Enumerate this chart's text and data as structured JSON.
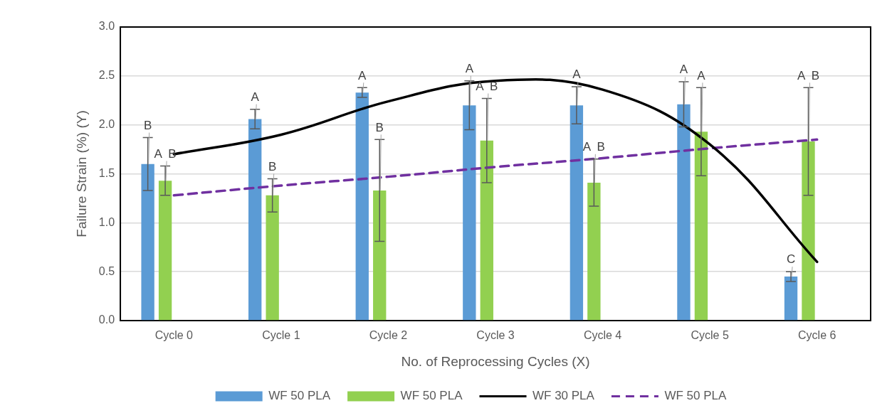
{
  "chart_data": {
    "type": "bar",
    "xlabel": "No. of Reprocessing Cycles (X)",
    "ylabel": "Failure Strain (%) (Y)",
    "categories": [
      "Cycle 0",
      "Cycle 1",
      "Cycle 2",
      "Cycle 3",
      "Cycle 4",
      "Cycle 5",
      "Cycle 6"
    ],
    "series": [
      {
        "name": "WF 50 PLA",
        "color": "#5b9bd5",
        "values": [
          1.6,
          2.06,
          2.33,
          2.2,
          2.2,
          2.21,
          0.45
        ],
        "errors": [
          0.27,
          0.1,
          0.05,
          0.25,
          0.19,
          0.23,
          0.05
        ],
        "value_labels": [
          "B",
          "A",
          "A",
          "A",
          "A",
          "A",
          "C"
        ]
      },
      {
        "name": "WF 50 PLA",
        "color": "#92d050",
        "values": [
          1.43,
          1.28,
          1.33,
          1.84,
          1.41,
          1.93,
          1.83
        ],
        "errors": [
          0.15,
          0.17,
          0.52,
          0.43,
          0.24,
          0.45,
          0.55
        ],
        "value_labels": [
          "A  B",
          "B",
          "B",
          "A  B",
          "A  B",
          "A",
          "A  B"
        ]
      },
      {
        "name": "WF 30 PLA",
        "type": "line",
        "color": "#000000",
        "line_style": "solid",
        "values": [
          1.7,
          1.9,
          2.24,
          2.45,
          2.36,
          1.8,
          0.6
        ]
      },
      {
        "name": "WF 50 PLA",
        "type": "line",
        "color": "#7030a0",
        "line_style": "dashed",
        "values": [
          1.28,
          1.38,
          1.47,
          1.57,
          1.66,
          1.76,
          1.85
        ]
      }
    ],
    "ylim": [
      0,
      3
    ],
    "yticks": [
      {
        "value": 0,
        "label": "0.0"
      },
      {
        "value": 0.5,
        "label": "0.5"
      },
      {
        "value": 1,
        "label": "1.0"
      },
      {
        "value": 1.5,
        "label": "1.5"
      },
      {
        "value": 2,
        "label": "2.0"
      },
      {
        "value": 2.5,
        "label": "2.5"
      },
      {
        "value": 3,
        "label": "3.0"
      }
    ],
    "grid": "y",
    "legend": "bottom",
    "marker": "none"
  }
}
